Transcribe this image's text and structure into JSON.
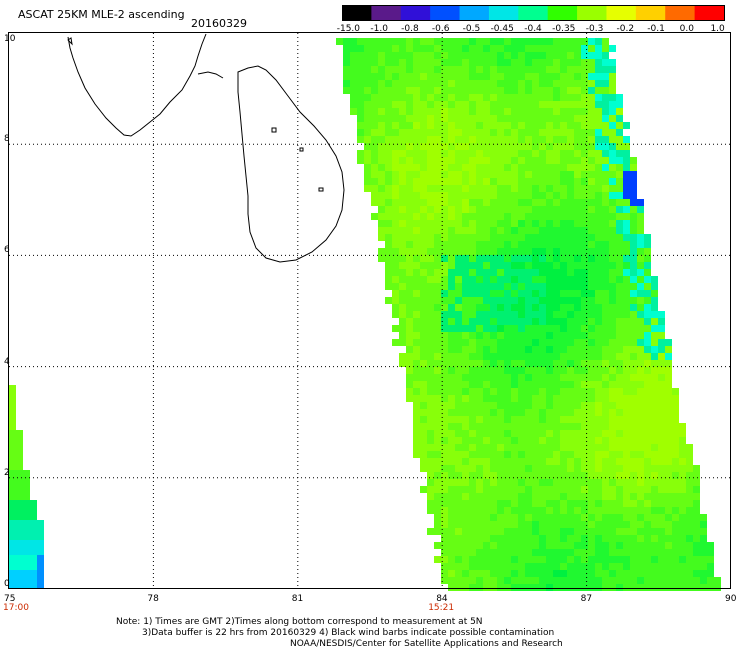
{
  "header": {
    "title": "ASCAT 25KM MLE-2 ascending",
    "date": "20160329"
  },
  "colorbar": {
    "labels": [
      "-15.0",
      "-1.0",
      "-0.8",
      "-0.6",
      "-0.5",
      "-0.45",
      "-0.4",
      "-0.35",
      "-0.3",
      "-0.2",
      "-0.1",
      "0.0",
      "1.0"
    ],
    "colors": [
      "#000000",
      "#5a1a8a",
      "#3010d8",
      "#0050ff",
      "#00a8ff",
      "#00e6e6",
      "#00ff90",
      "#30ff00",
      "#9aff00",
      "#e6ff00",
      "#ffd000",
      "#ff6a00",
      "#ff0000"
    ]
  },
  "map": {
    "lon_labels": [
      "75",
      "78",
      "81",
      "84",
      "87",
      "90"
    ],
    "lat_labels": [
      "0",
      "2",
      "4",
      "6",
      "8",
      "10"
    ],
    "lon_range": [
      75,
      90
    ],
    "lat_range": [
      0,
      10
    ],
    "time_labels": [
      {
        "text": "17:00",
        "lon": 75
      },
      {
        "text": "15:21",
        "lon": 84
      }
    ],
    "land_name": "Sri Lanka / southern India coastline"
  },
  "footer": {
    "line1": "Note: 1) Times are GMT 2)Times along bottom correspond to measurement at 5N",
    "line2": "3)Data buffer is 22 hrs from 20160329 4) Black wind barbs indicate possible contamination",
    "line3": "NOAA/NESDIS/Center for Satellite Applications and Research"
  }
}
